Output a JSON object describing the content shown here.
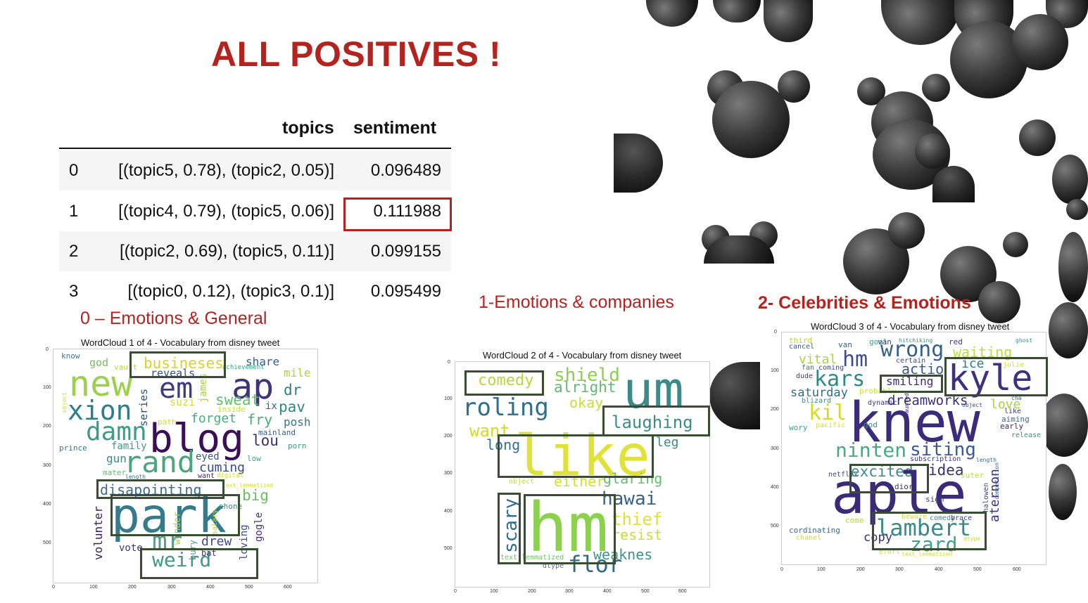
{
  "slide": {
    "title": "ALL POSITIVES !"
  },
  "table": {
    "headers": [
      "topics",
      "sentiment"
    ],
    "rows": [
      {
        "index": "0",
        "topics": "[(topic5, 0.78), (topic2, 0.05)]",
        "sentiment": "0.096489"
      },
      {
        "index": "1",
        "topics": "[(topic4, 0.79), (topic5, 0.06)]",
        "sentiment": "0.111988"
      },
      {
        "index": "2",
        "topics": "[(topic2, 0.69), (topic5, 0.11)]",
        "sentiment": "0.099155"
      },
      {
        "index": "3",
        "topics": "[(topic0, 0.12), (topic3, 0.1)]",
        "sentiment": "0.095499"
      }
    ],
    "highlighted_value": "0.111988"
  },
  "clouds": [
    {
      "label": "0 – Emotions & General",
      "title": "WordCloud 1 of 4 - Vocabulary from disney tweet",
      "yticks": [
        "0",
        "100",
        "200",
        "300",
        "400",
        "500"
      ],
      "xticks": [
        "0",
        "100",
        "200",
        "300",
        "400",
        "500",
        "600"
      ],
      "highlighted_words": [
        "busineses",
        "disapointing",
        "park",
        "weird"
      ],
      "words": [
        "know",
        "god",
        "vault",
        "busineses",
        "reveals",
        "achievement",
        "share",
        "mile",
        "new",
        "em",
        "ap",
        "dr",
        "xion",
        "suzi",
        "sweat",
        "ix",
        "pav",
        "series",
        "james",
        "inside",
        "damn",
        "path",
        "forget",
        "fry",
        "posh",
        "blog",
        "mainland",
        "prince",
        "family",
        "lou",
        "porn",
        "rand",
        "gun",
        "eyed",
        "low",
        "cuming",
        "mater",
        "length",
        "want",
        "digital",
        "disapointing",
        "text_lemmatized",
        "big",
        "park",
        "volunter",
        "wonder",
        "salary",
        "phone",
        "gogle",
        "mr",
        "drew",
        "vote",
        "loving",
        "weird",
        "object",
        "bury",
        "bat"
      ]
    },
    {
      "label": "1-Emotions & companies",
      "title": "WordCloud 2 of 4 - Vocabulary from disney tweet",
      "yticks": [
        "0",
        "100",
        "200",
        "300",
        "400",
        "500"
      ],
      "xticks": [
        "0",
        "100",
        "200",
        "300",
        "400",
        "500",
        "600"
      ],
      "highlighted_words": [
        "comedy",
        "laughing",
        "like",
        "scary",
        "hm"
      ],
      "words": [
        "comedy",
        "shield",
        "alright",
        "um",
        "roling",
        "okay",
        "laughing",
        "want",
        "long",
        "leg",
        "like",
        "object",
        "either",
        "glaring",
        "hawai",
        "scary",
        "hm",
        "thief",
        "resist",
        "text_lemmatized",
        "weaknes",
        "dtype",
        "flor"
      ]
    },
    {
      "label": "2- Celebrities & Emotions",
      "title": "WordCloud 3 of 4 - Vocabulary from disney tweet",
      "yticks": [
        "0",
        "100",
        "200",
        "300",
        "400",
        "500"
      ],
      "xticks": [
        "0",
        "100",
        "200",
        "300",
        "400",
        "500",
        "600"
      ],
      "highlighted_words": [
        "kyle",
        "smiling",
        "excited",
        "lambert"
      ],
      "words": [
        "third",
        "goal",
        "van",
        "hitchiking",
        "red",
        "ghost",
        "cancel",
        "wrong",
        "waiting",
        "vital",
        "fan",
        "certain",
        "jolie",
        "dude",
        "hm",
        "ice",
        "coming",
        "actio",
        "kars",
        "smiling",
        "kyle",
        "saturday",
        "probably",
        "cha",
        "blizard",
        "dynamic",
        "dreamworks",
        "object",
        "love",
        "kil",
        "pacific",
        "knew",
        "aiming",
        "wory",
        "god",
        "haunted",
        "early",
        "release",
        "like",
        "ninten",
        "siting",
        "subscription",
        "length",
        "netflix",
        "excited",
        "idea",
        "suter",
        "aple",
        "dior",
        "sign",
        "halowen",
        "comedy",
        "competition",
        "aternon",
        "come",
        "brace",
        "beware",
        "cordinating",
        "lambert",
        "chanel",
        "copy",
        "dtype",
        "zard",
        "text_lemmatized",
        "efort"
      ]
    }
  ]
}
